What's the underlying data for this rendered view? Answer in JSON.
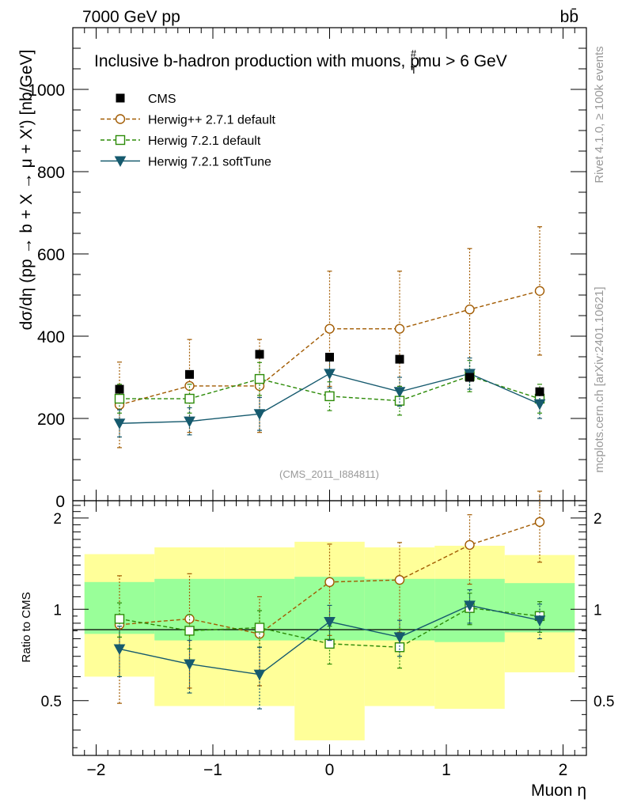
{
  "header": {
    "energy_label": "7000 GeV pp",
    "process_label": "bb̄",
    "rivet_label": "Rivet 4.1.0, ≥ 100k events",
    "mcplots_label": "mcplots.cern.ch [arXiv:2401.10621]",
    "analysis_label": "(CMS_2011_I884811)"
  },
  "chart_data": {
    "type": "scatter",
    "title": "Inclusive b-hadron production with muons, p",
    "title_sub": "T",
    "title_sup": "#",
    "title_suffix": "mu > 6 GeV",
    "xlabel": "Muon η",
    "ylabel": "dσ/dη (pp → b + X → μ + X') [nb/GeV]",
    "ratio_ylabel": "Ratio to CMS",
    "xlim": [
      -2.2,
      2.2
    ],
    "ylim": [
      0,
      1150
    ],
    "ratio_ylim": [
      0.33,
      2.28
    ],
    "xticks": [
      -2,
      -1,
      0,
      1,
      2
    ],
    "xtick_labels": [
      "−2",
      "−1",
      "0",
      "1",
      "2"
    ],
    "yticks": [
      0,
      200,
      400,
      600,
      800,
      1000
    ],
    "ytick_labels": [
      "0",
      "200",
      "400",
      "600",
      "800",
      "1000"
    ],
    "ratio_yticks": [
      0.5,
      1,
      2
    ],
    "ratio_ytick_labels": [
      "0.5",
      "1",
      "2"
    ],
    "x": [
      -1.8,
      -1.2,
      -0.6,
      0.0,
      0.6,
      1.2,
      1.8
    ],
    "bin_edges": [
      -2.1,
      -1.5,
      -0.9,
      -0.3,
      0.3,
      0.9,
      1.5,
      2.1
    ],
    "data": {
      "name": "CMS",
      "color": "#000000",
      "values": [
        271,
        307,
        356,
        349,
        344,
        300,
        265
      ],
      "band_inner": [
        [
          0.83,
          1.23
        ],
        [
          0.79,
          1.26
        ],
        [
          0.79,
          1.26
        ],
        [
          0.79,
          1.28
        ],
        [
          0.79,
          1.26
        ],
        [
          0.78,
          1.26
        ],
        [
          0.84,
          1.22
        ]
      ],
      "band_outer": [
        [
          0.6,
          1.52
        ],
        [
          0.48,
          1.6
        ],
        [
          0.48,
          1.6
        ],
        [
          0.37,
          1.67
        ],
        [
          0.48,
          1.6
        ],
        [
          0.47,
          1.62
        ],
        [
          0.62,
          1.51
        ]
      ]
    },
    "series": [
      {
        "name": "Herwig++ 2.7.1 default",
        "color": "#a15a00",
        "marker": "circle",
        "values": [
          233,
          279,
          279,
          418,
          418,
          465,
          510
        ],
        "err": [
          104,
          113,
          113,
          140,
          140,
          148,
          156
        ],
        "ratio": [
          0.89,
          0.93,
          0.83,
          1.23,
          1.25,
          1.63,
          1.94
        ],
        "ratio_err": [
          0.4,
          0.38,
          0.27,
          0.41,
          0.41,
          0.42,
          0.51
        ]
      },
      {
        "name": "Herwig 7.2.1 default",
        "color": "#2b8a06",
        "marker": "square",
        "values": [
          248,
          248,
          296,
          254,
          243,
          303,
          248
        ],
        "err": [
          35,
          35,
          40,
          35,
          35,
          38,
          35
        ],
        "ratio": [
          0.93,
          0.85,
          0.87,
          0.77,
          0.75,
          1.01,
          0.95
        ],
        "ratio_err": [
          0.12,
          0.11,
          0.12,
          0.11,
          0.11,
          0.12,
          0.11
        ]
      },
      {
        "name": "Herwig 7.2.1 softTune",
        "color": "#165a6e",
        "marker": "triangle-down",
        "values": [
          188,
          193,
          211,
          309,
          265,
          309,
          235
        ],
        "err": [
          33,
          33,
          40,
          35,
          35,
          38,
          35
        ],
        "ratio": [
          0.74,
          0.66,
          0.61,
          0.91,
          0.81,
          1.03,
          0.92
        ],
        "ratio_err": [
          0.14,
          0.13,
          0.14,
          0.12,
          0.11,
          0.13,
          0.12
        ]
      }
    ]
  }
}
